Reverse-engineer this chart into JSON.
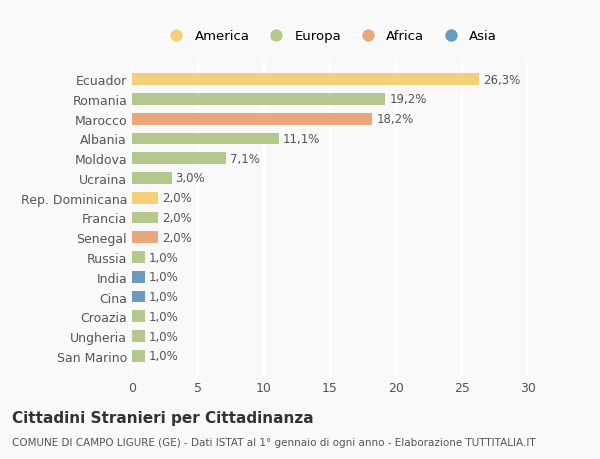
{
  "categories": [
    "San Marino",
    "Ungheria",
    "Croazia",
    "Cina",
    "India",
    "Russia",
    "Senegal",
    "Francia",
    "Rep. Dominicana",
    "Ucraina",
    "Moldova",
    "Albania",
    "Marocco",
    "Romania",
    "Ecuador"
  ],
  "values": [
    1.0,
    1.0,
    1.0,
    1.0,
    1.0,
    1.0,
    2.0,
    2.0,
    2.0,
    3.0,
    7.1,
    11.1,
    18.2,
    19.2,
    26.3
  ],
  "colors": [
    "#b5c98e",
    "#b5c98e",
    "#b5c98e",
    "#6b9abf",
    "#6b9abf",
    "#b5c98e",
    "#e8a87c",
    "#b5c98e",
    "#f5d07a",
    "#b5c98e",
    "#b5c98e",
    "#b5c98e",
    "#e8a87c",
    "#b5c98e",
    "#f5d07a"
  ],
  "labels": [
    "1,0%",
    "1,0%",
    "1,0%",
    "1,0%",
    "1,0%",
    "1,0%",
    "2,0%",
    "2,0%",
    "2,0%",
    "3,0%",
    "7,1%",
    "11,1%",
    "18,2%",
    "19,2%",
    "26,3%"
  ],
  "legend": [
    {
      "label": "America",
      "color": "#f5d07a"
    },
    {
      "label": "Europa",
      "color": "#b5c98e"
    },
    {
      "label": "Africa",
      "color": "#e8a87c"
    },
    {
      "label": "Asia",
      "color": "#6b9abf"
    }
  ],
  "xlim": [
    0,
    30
  ],
  "xticks": [
    0,
    5,
    10,
    15,
    20,
    25,
    30
  ],
  "title": "Cittadini Stranieri per Cittadinanza",
  "subtitle": "COMUNE DI CAMPO LIGURE (GE) - Dati ISTAT al 1° gennaio di ogni anno - Elaborazione TUTTITALIA.IT",
  "bg_color": "#f9f9f9",
  "grid_color": "#ffffff",
  "bar_height": 0.6
}
